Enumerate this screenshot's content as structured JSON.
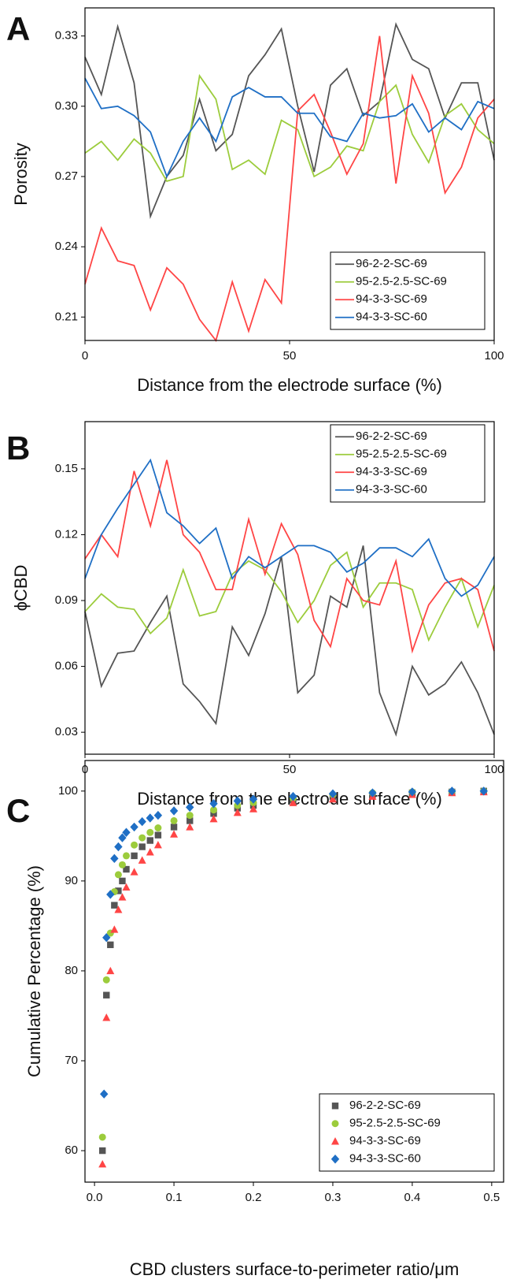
{
  "chart_data": [
    {
      "type": "line",
      "panel_label": "A",
      "xlabel": "Distance from the electrode surface (%)",
      "ylabel": "Porosity",
      "xlim": [
        0,
        100
      ],
      "xticks": [
        0,
        50,
        100
      ],
      "ylim": [
        0.2,
        0.342
      ],
      "yticks": [
        0.21,
        0.24,
        0.27,
        {
          "value": 0.3,
          "label": "0.30"
        },
        0.33
      ],
      "legend": "lower right",
      "x": [
        0,
        4,
        8,
        12,
        16,
        20,
        24,
        28,
        32,
        36,
        40,
        44,
        48,
        52,
        56,
        60,
        64,
        68,
        72,
        76,
        80,
        84,
        88,
        92,
        96,
        100
      ],
      "series": [
        {
          "name": "96-2-2-SC-69",
          "color": "#555555",
          "values": [
            0.321,
            0.305,
            0.334,
            0.31,
            0.253,
            0.27,
            0.279,
            0.303,
            0.281,
            0.288,
            0.313,
            0.322,
            0.333,
            0.3,
            0.272,
            0.309,
            0.316,
            0.296,
            0.302,
            0.335,
            0.32,
            0.316,
            0.295,
            0.31,
            0.31,
            0.277
          ]
        },
        {
          "name": "95-2.5-2.5-SC-69",
          "color": "#9ccc3c",
          "values": [
            0.28,
            0.285,
            0.277,
            0.286,
            0.28,
            0.268,
            0.27,
            0.313,
            0.303,
            0.273,
            0.277,
            0.271,
            0.294,
            0.29,
            0.27,
            0.274,
            0.283,
            0.281,
            0.302,
            0.309,
            0.288,
            0.276,
            0.296,
            0.301,
            0.29,
            0.284
          ]
        },
        {
          "name": "94-3-3-SC-69",
          "color": "#ff4545",
          "values": [
            0.224,
            0.248,
            0.234,
            0.232,
            0.213,
            0.231,
            0.224,
            0.209,
            0.2,
            0.225,
            0.204,
            0.226,
            0.216,
            0.298,
            0.305,
            0.289,
            0.271,
            0.284,
            0.33,
            0.267,
            0.313,
            0.297,
            0.263,
            0.274,
            0.295,
            0.303
          ]
        },
        {
          "name": "94-3-3-SC-60",
          "color": "#1f6fc5",
          "values": [
            0.312,
            0.299,
            0.3,
            0.296,
            0.289,
            0.27,
            0.285,
            0.295,
            0.285,
            0.304,
            0.308,
            0.304,
            0.304,
            0.297,
            0.297,
            0.287,
            0.285,
            0.297,
            0.295,
            0.296,
            0.301,
            0.289,
            0.295,
            0.29,
            0.302,
            0.299
          ]
        }
      ]
    },
    {
      "type": "line",
      "panel_label": "B",
      "xlabel": "Distance from the electrode surface (%)",
      "ylabel": "ϕCBD",
      "xlim": [
        0,
        100
      ],
      "xticks": [
        0,
        50,
        100
      ],
      "ylim": [
        0.02,
        0.1715
      ],
      "yticks": [
        0.03,
        0.06,
        0.09,
        0.12,
        0.15
      ],
      "legend": "upper right",
      "x": [
        0,
        4,
        8,
        12,
        16,
        20,
        24,
        28,
        32,
        36,
        40,
        44,
        48,
        52,
        56,
        60,
        64,
        68,
        72,
        76,
        80,
        84,
        88,
        92,
        96,
        100
      ],
      "series": [
        {
          "name": "96-2-2-SC-69",
          "color": "#555555",
          "values": [
            0.085,
            0.051,
            0.066,
            0.067,
            0.08,
            0.092,
            0.052,
            0.044,
            0.034,
            0.078,
            0.065,
            0.084,
            0.11,
            0.048,
            0.056,
            0.092,
            0.087,
            0.115,
            0.048,
            0.029,
            0.06,
            0.047,
            0.052,
            0.062,
            0.048,
            0.029
          ]
        },
        {
          "name": "95-2.5-2.5-SC-69",
          "color": "#9ccc3c",
          "values": [
            0.085,
            0.093,
            0.087,
            0.086,
            0.075,
            0.082,
            0.104,
            0.083,
            0.085,
            0.102,
            0.108,
            0.104,
            0.094,
            0.08,
            0.09,
            0.106,
            0.112,
            0.087,
            0.098,
            0.098,
            0.095,
            0.072,
            0.087,
            0.1,
            0.078,
            0.097
          ]
        },
        {
          "name": "94-3-3-SC-69",
          "color": "#ff4545",
          "values": [
            0.109,
            0.12,
            0.11,
            0.149,
            0.124,
            0.154,
            0.12,
            0.112,
            0.095,
            0.095,
            0.127,
            0.102,
            0.125,
            0.111,
            0.081,
            0.069,
            0.1,
            0.09,
            0.088,
            0.108,
            0.067,
            0.088,
            0.098,
            0.1,
            0.095,
            0.067
          ]
        },
        {
          "name": "94-3-3-SC-60",
          "color": "#1f6fc5",
          "values": [
            0.1,
            0.12,
            0.132,
            0.143,
            0.154,
            0.13,
            0.124,
            0.116,
            0.123,
            0.1,
            0.11,
            0.105,
            0.11,
            0.115,
            0.115,
            0.112,
            0.103,
            0.107,
            0.114,
            0.114,
            0.11,
            0.118,
            0.1,
            0.092,
            0.097,
            0.11
          ]
        }
      ]
    },
    {
      "type": "scatter",
      "panel_label": "C",
      "xlabel": "CBD clusters surface-to-perimeter ratio/μm",
      "ylabel": "Cumulative Percentage (%)",
      "xlim": [
        -0.012,
        0.515
      ],
      "xticks": [
        {
          "value": 0,
          "label": "0.0"
        },
        0.1,
        0.2,
        0.3,
        0.4,
        0.5
      ],
      "ylim": [
        56.5,
        103.4
      ],
      "yticks": [
        60,
        70,
        80,
        90,
        100
      ],
      "legend": "lower right",
      "series": [
        {
          "name": "96-2-2-SC-69",
          "color": "#555555",
          "marker": "square",
          "x": [
            0.01,
            0.015,
            0.02,
            0.025,
            0.03,
            0.035,
            0.04,
            0.05,
            0.06,
            0.07,
            0.08,
            0.1,
            0.12,
            0.15,
            0.18,
            0.2,
            0.25,
            0.3,
            0.35,
            0.4,
            0.45,
            0.49
          ],
          "values": [
            60.0,
            77.3,
            82.9,
            87.3,
            88.9,
            90.0,
            91.3,
            92.8,
            93.8,
            94.5,
            95.1,
            96.0,
            96.7,
            97.5,
            98.1,
            98.4,
            99.0,
            99.4,
            99.6,
            99.8,
            99.9,
            100.0
          ]
        },
        {
          "name": "95-2.5-2.5-SC-69",
          "color": "#9ccc3c",
          "marker": "circle",
          "x": [
            0.01,
            0.015,
            0.02,
            0.025,
            0.03,
            0.035,
            0.04,
            0.05,
            0.06,
            0.07,
            0.08,
            0.1,
            0.12,
            0.15,
            0.18,
            0.2,
            0.25,
            0.3,
            0.35,
            0.4,
            0.45,
            0.49
          ],
          "values": [
            61.5,
            79.0,
            84.2,
            88.8,
            90.7,
            91.8,
            92.8,
            94.0,
            94.8,
            95.4,
            95.9,
            96.7,
            97.3,
            97.9,
            98.4,
            98.7,
            99.2,
            99.6,
            99.8,
            99.9,
            99.95,
            100.0
          ]
        },
        {
          "name": "94-3-3-SC-69",
          "color": "#ff4545",
          "marker": "triangle",
          "x": [
            0.01,
            0.015,
            0.02,
            0.025,
            0.03,
            0.035,
            0.04,
            0.05,
            0.06,
            0.07,
            0.08,
            0.1,
            0.12,
            0.15,
            0.18,
            0.2,
            0.25,
            0.3,
            0.35,
            0.4,
            0.45,
            0.49
          ],
          "values": [
            58.5,
            74.8,
            80.0,
            84.6,
            86.8,
            88.2,
            89.3,
            91.0,
            92.3,
            93.2,
            94.0,
            95.2,
            96.0,
            96.9,
            97.6,
            98.0,
            98.7,
            99.1,
            99.4,
            99.6,
            99.8,
            99.9
          ]
        },
        {
          "name": "94-3-3-SC-60",
          "color": "#1f6fc5",
          "marker": "diamond",
          "x": [
            0.012,
            0.015,
            0.02,
            0.025,
            0.03,
            0.035,
            0.04,
            0.05,
            0.06,
            0.07,
            0.08,
            0.1,
            0.12,
            0.15,
            0.18,
            0.2,
            0.25,
            0.3,
            0.35,
            0.4,
            0.45,
            0.49
          ],
          "values": [
            66.3,
            83.7,
            88.5,
            92.5,
            93.8,
            94.8,
            95.4,
            96.0,
            96.6,
            97.0,
            97.3,
            97.8,
            98.2,
            98.6,
            98.9,
            99.1,
            99.4,
            99.7,
            99.8,
            99.9,
            100.0,
            100.0
          ]
        }
      ]
    }
  ]
}
